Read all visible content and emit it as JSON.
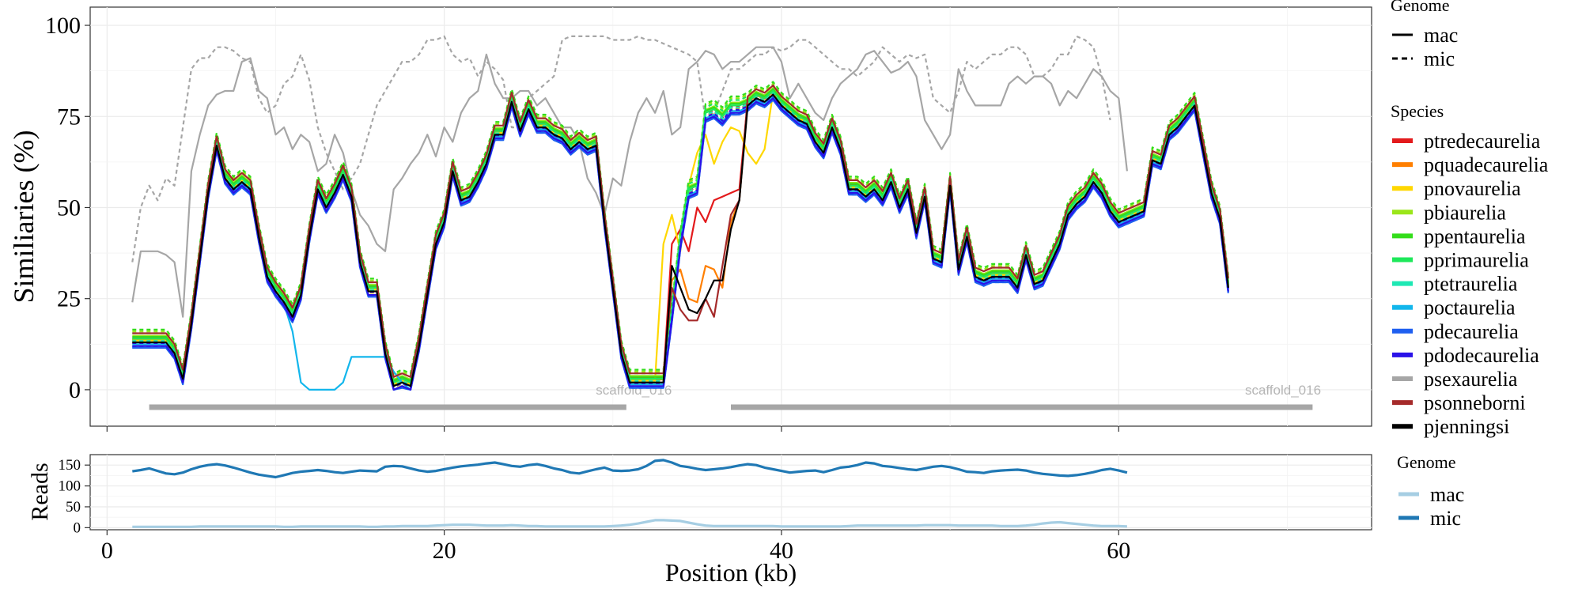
{
  "chart_data": [
    {
      "type": "line",
      "panel": "similarities",
      "ylabel": "Similiaries (%)",
      "yticks": [
        0,
        25,
        50,
        75,
        100
      ],
      "ylim": [
        -10,
        105
      ],
      "xlim": [
        -1,
        75
      ],
      "x_start": 1.5,
      "x_step": 0.5,
      "grid": true,
      "legend_genome": {
        "title": "Genome",
        "items": [
          {
            "label": "mac",
            "linetype": "solid"
          },
          {
            "label": "mic",
            "linetype": "dashed"
          }
        ]
      },
      "legend_species": {
        "title": "Species",
        "items": [
          {
            "label": "ptredecaurelia",
            "color": "#e31a1c"
          },
          {
            "label": "pquadecaurelia",
            "color": "#ff7f00"
          },
          {
            "label": "pnovaurelia",
            "color": "#ffd700"
          },
          {
            "label": "pbiaurelia",
            "color": "#9be61a"
          },
          {
            "label": "ppentaurelia",
            "color": "#33dd1a"
          },
          {
            "label": "pprimaurelia",
            "color": "#1ee85a"
          },
          {
            "label": "ptetraurelia",
            "color": "#1ee8b4"
          },
          {
            "label": "poctaurelia",
            "color": "#12b6ec"
          },
          {
            "label": "pdecaurelia",
            "color": "#1f5ff0"
          },
          {
            "label": "pdodecaurelia",
            "color": "#2a12e8"
          },
          {
            "label": "psexaurelia",
            "color": "#a6a6a6"
          },
          {
            "label": "psonneborni",
            "color": "#a52a2a"
          },
          {
            "label": "pjenningsi",
            "color": "#000000"
          }
        ]
      },
      "annotations": [
        {
          "text": "scaffold_016",
          "x": 33.5,
          "y": 0,
          "bar": [
            2.5,
            30.8
          ]
        },
        {
          "text": "scaffold_016",
          "x": 72,
          "y": 0,
          "bar": [
            37,
            71.5
          ]
        }
      ],
      "base_profile": [
        13,
        13,
        13,
        13,
        13,
        10,
        3,
        18,
        36,
        54,
        67,
        58,
        55,
        57,
        55,
        42,
        31,
        27,
        24,
        20,
        26,
        42,
        55,
        50,
        54,
        59,
        53,
        35,
        27,
        27,
        10,
        1,
        2,
        1,
        12,
        26,
        40,
        46,
        60,
        52,
        53,
        57,
        62,
        70,
        70,
        79,
        71,
        77,
        72,
        72,
        70,
        69,
        66,
        68,
        66,
        67,
        46,
        28,
        10,
        2,
        2,
        2,
        2,
        2,
        20,
        40,
        54,
        55,
        75,
        76,
        74,
        77,
        77,
        78,
        80,
        79,
        81,
        78,
        76,
        74,
        73,
        68,
        65,
        72,
        66,
        55,
        55,
        53,
        55,
        52,
        57,
        50,
        55,
        43,
        53,
        36,
        35,
        56,
        33,
        42,
        31,
        30,
        31,
        31,
        31,
        28,
        37,
        29,
        30,
        35,
        40,
        48,
        51,
        53,
        57,
        54,
        49,
        46,
        47,
        48,
        49,
        63,
        62,
        70,
        72,
        75,
        78,
        66,
        54,
        47,
        28
      ],
      "series": [
        {
          "name": "ptredecaurelia",
          "color": "#e31a1c",
          "genome": "mac",
          "offset": 1.2,
          "overrides": {
            "from": 64,
            "to": 72,
            "values": [
              40,
              44,
              38,
              50,
              46,
              52,
              53,
              54,
              55
            ]
          }
        },
        {
          "name": "ptredecaurelia",
          "color": "#e31a1c",
          "genome": "mic",
          "offset": 0.6
        },
        {
          "name": "pquadecaurelia",
          "color": "#ff7f00",
          "genome": "mac",
          "offset": 0.8,
          "overrides": {
            "from": 64,
            "to": 72,
            "values": [
              30,
              33,
              25,
              24,
              34,
              33,
              28,
              46,
              52
            ]
          }
        },
        {
          "name": "pquadecaurelia",
          "color": "#ff7f00",
          "genome": "mic",
          "offset": 0.2
        },
        {
          "name": "pnovaurelia",
          "color": "#ffd700",
          "genome": "mac",
          "offset": 0.5,
          "overrides": {
            "from": 63,
            "to": 75,
            "values": [
              40,
              48,
              38,
              56,
              65,
              70,
              62,
              68,
              72,
              71,
              65,
              62,
              66
            ]
          }
        },
        {
          "name": "pnovaurelia",
          "color": "#ffd700",
          "genome": "mic",
          "offset": -0.4
        },
        {
          "name": "pbiaurelia",
          "color": "#9be61a",
          "genome": "mac",
          "offset": 1.8
        },
        {
          "name": "pbiaurelia",
          "color": "#9be61a",
          "genome": "mic",
          "offset": 3.0
        },
        {
          "name": "ppentaurelia",
          "color": "#33dd1a",
          "genome": "mac",
          "offset": 1.5
        },
        {
          "name": "ppentaurelia",
          "color": "#33dd1a",
          "genome": "mic",
          "offset": 3.5
        },
        {
          "name": "pprimaurelia",
          "color": "#1ee85a",
          "genome": "mac",
          "offset": 1.0
        },
        {
          "name": "pprimaurelia",
          "color": "#1ee85a",
          "genome": "mic",
          "offset": 2.5
        },
        {
          "name": "ptetraurelia",
          "color": "#1ee8b4",
          "genome": "mac",
          "offset": -1.0
        },
        {
          "name": "ptetraurelia",
          "color": "#1ee8b4",
          "genome": "mic",
          "offset": 0.4
        },
        {
          "name": "poctaurelia",
          "color": "#12b6ec",
          "genome": "mac",
          "offset": -0.5,
          "overrides": {
            "from": 19,
            "to": 33,
            "values": [
              16,
              2,
              0,
              0,
              0,
              0,
              2,
              9,
              9,
              9,
              9,
              9,
              5,
              2,
              0
            ]
          }
        },
        {
          "name": "poctaurelia",
          "color": "#12b6ec",
          "genome": "mic",
          "offset": -1.5
        },
        {
          "name": "pdecaurelia",
          "color": "#1f5ff0",
          "genome": "mac",
          "offset": -1.5
        },
        {
          "name": "pdecaurelia",
          "color": "#1f5ff0",
          "genome": "mic",
          "offset": -1.2
        },
        {
          "name": "pdodecaurelia",
          "color": "#2a12e8",
          "genome": "mac",
          "offset": -1.0
        },
        {
          "name": "pdodecaurelia",
          "color": "#2a12e8",
          "genome": "mic",
          "offset": -0.2
        },
        {
          "name": "psexaurelia",
          "color": "#a6a6a6",
          "genome": "mac",
          "values": [
            24,
            38,
            38,
            38,
            37,
            35,
            20,
            60,
            70,
            78,
            81,
            82,
            82,
            90,
            91,
            82,
            80,
            70,
            72,
            66,
            70,
            68,
            60,
            62,
            70,
            65,
            55,
            48,
            45,
            40,
            38,
            55,
            58,
            62,
            65,
            70,
            64,
            72,
            68,
            76,
            80,
            82,
            92,
            84,
            80,
            80,
            82,
            82,
            78,
            80,
            76,
            72,
            72,
            68,
            58,
            54,
            48,
            58,
            56,
            68,
            76,
            80,
            76,
            82,
            70,
            72,
            88,
            90,
            93,
            92,
            88,
            90,
            90,
            92,
            94,
            94,
            94,
            90,
            80,
            84,
            80,
            76,
            74,
            80,
            84,
            86,
            88,
            92,
            93,
            90,
            87,
            88,
            90,
            86,
            74,
            70,
            66,
            70,
            88,
            82,
            78,
            78,
            78,
            78,
            84,
            86,
            84,
            86,
            86,
            84,
            78,
            82,
            80,
            84,
            88,
            86,
            82,
            80,
            60
          ]
        },
        {
          "name": "psexaurelia",
          "color": "#a6a6a6",
          "genome": "mic",
          "values": [
            35,
            50,
            56,
            52,
            58,
            56,
            72,
            88,
            91,
            91,
            94,
            94,
            93,
            91,
            90,
            80,
            76,
            78,
            84,
            86,
            92,
            85,
            72,
            65,
            60,
            55,
            58,
            62,
            70,
            78,
            82,
            86,
            90,
            90,
            92,
            96,
            96,
            97,
            92,
            90,
            91,
            86,
            90,
            88,
            85,
            72,
            72,
            80,
            82,
            84,
            86,
            96,
            97,
            97,
            97,
            97,
            97,
            96,
            96,
            96,
            97,
            96,
            96,
            95,
            94,
            93,
            92,
            90,
            74,
            76,
            82,
            88,
            88,
            90,
            92,
            92,
            94,
            93,
            94,
            96,
            96,
            94,
            92,
            90,
            88,
            88,
            86,
            88,
            90,
            94,
            92,
            90,
            92,
            91,
            92,
            80,
            78,
            76,
            82,
            90,
            88,
            90,
            92,
            92,
            94,
            94,
            92,
            86,
            86,
            88,
            92,
            92,
            97,
            96,
            94,
            86,
            74
          ]
        },
        {
          "name": "psonneborni",
          "color": "#a52a2a",
          "genome": "mac",
          "offset": 2.5,
          "overrides": {
            "from": 64,
            "to": 72,
            "values": [
              28,
              22,
              19,
              19,
              25,
              20,
              34,
              48,
              52
            ]
          }
        },
        {
          "name": "pjenningsi",
          "color": "#000000",
          "genome": "mac",
          "offset": 0.0,
          "overrides": {
            "from": 64,
            "to": 72,
            "values": [
              34,
              28,
              22,
              21,
              25,
              30,
              30,
              44,
              52
            ]
          }
        }
      ]
    },
    {
      "type": "line",
      "panel": "reads",
      "ylabel": "Reads",
      "xlabel": "Position (kb)",
      "xticks": [
        0,
        20,
        40,
        60
      ],
      "yticks": [
        0,
        50,
        100,
        150
      ],
      "ylim": [
        -5,
        175
      ],
      "xlim": [
        -1,
        75
      ],
      "grid": true,
      "legend": {
        "title": "Genome",
        "items": [
          {
            "label": "mac",
            "color": "#a6cee3"
          },
          {
            "label": "mic",
            "color": "#1f78b4"
          }
        ]
      },
      "series": [
        {
          "name": "mic",
          "color": "#1f78b4",
          "x_start": 1.5,
          "x_step": 0.5,
          "values": [
            135,
            138,
            142,
            136,
            130,
            128,
            132,
            140,
            146,
            150,
            152,
            149,
            144,
            138,
            132,
            127,
            124,
            121,
            126,
            131,
            134,
            136,
            138,
            136,
            133,
            131,
            134,
            137,
            136,
            135,
            146,
            148,
            147,
            142,
            137,
            134,
            136,
            140,
            144,
            147,
            149,
            151,
            154,
            156,
            152,
            148,
            146,
            150,
            152,
            148,
            142,
            138,
            132,
            130,
            135,
            140,
            144,
            137,
            136,
            137,
            140,
            148,
            160,
            162,
            156,
            148,
            145,
            141,
            138,
            140,
            142,
            145,
            149,
            152,
            150,
            144,
            140,
            136,
            132,
            134,
            136,
            137,
            133,
            138,
            144,
            146,
            150,
            156,
            154,
            148,
            146,
            143,
            140,
            138,
            142,
            146,
            148,
            145,
            140,
            134,
            133,
            131,
            135,
            137,
            138,
            139,
            137,
            132,
            129,
            127,
            125,
            124,
            126,
            129,
            133,
            138,
            141,
            137,
            132
          ]
        },
        {
          "name": "mac",
          "color": "#a6cee3",
          "x_start": 1.5,
          "x_step": 0.5,
          "values": [
            2,
            2,
            2,
            2,
            2,
            2,
            2,
            2,
            3,
            3,
            3,
            3,
            3,
            3,
            3,
            3,
            3,
            3,
            2,
            2,
            3,
            3,
            3,
            3,
            3,
            3,
            3,
            3,
            2,
            2,
            3,
            3,
            4,
            4,
            4,
            4,
            5,
            6,
            7,
            7,
            7,
            6,
            5,
            5,
            5,
            6,
            5,
            4,
            4,
            3,
            3,
            3,
            3,
            3,
            3,
            3,
            3,
            4,
            5,
            7,
            10,
            14,
            18,
            18,
            17,
            16,
            12,
            8,
            5,
            4,
            4,
            4,
            4,
            4,
            4,
            4,
            4,
            3,
            3,
            3,
            3,
            3,
            3,
            3,
            3,
            4,
            5,
            5,
            5,
            5,
            5,
            5,
            5,
            5,
            6,
            6,
            6,
            6,
            5,
            5,
            5,
            5,
            5,
            4,
            4,
            4,
            5,
            7,
            10,
            12,
            13,
            11,
            9,
            7,
            5,
            4,
            4,
            4,
            3
          ]
        }
      ]
    }
  ]
}
